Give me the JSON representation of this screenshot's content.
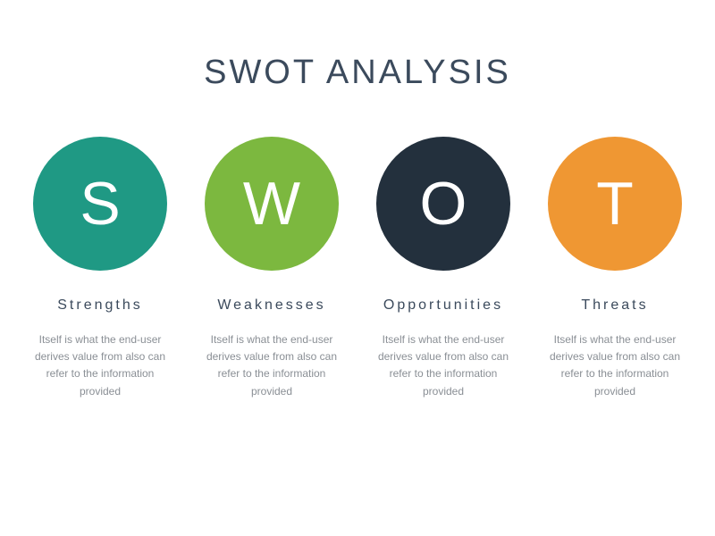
{
  "title": "SWOT ANALYSIS",
  "title_fontsize": 38,
  "title_color": "#3b4a5c",
  "title_letter_spacing": 3,
  "background_color": "#ffffff",
  "type": "infographic",
  "circle_diameter": 150,
  "circle_letter_fontsize": 68,
  "circle_letter_color": "#ffffff",
  "label_fontsize": 16,
  "label_color": "#3b4a5c",
  "label_letter_spacing": 3,
  "description_fontsize": 12,
  "description_color": "#8a8f95",
  "column_gap": 28,
  "items": [
    {
      "letter": "S",
      "label": "Strengths",
      "color": "#1f9984",
      "description": "Itself is what the end-user derives value from also can refer to the information provided"
    },
    {
      "letter": "W",
      "label": "Weaknesses",
      "color": "#7cb83f",
      "description": "Itself is what the end-user derives value from also can refer to the information provided"
    },
    {
      "letter": "O",
      "label": "Opportunities",
      "color": "#23303d",
      "description": "Itself is what the end-user derives value from also can refer to the information provided"
    },
    {
      "letter": "T",
      "label": "Threats",
      "color": "#ef9733",
      "description": "Itself is what the end-user derives value from also can refer to the information provided"
    }
  ]
}
